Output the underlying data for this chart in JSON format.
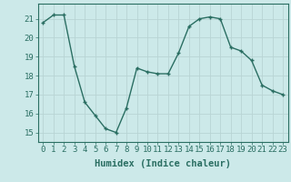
{
  "x": [
    0,
    1,
    2,
    3,
    4,
    5,
    6,
    7,
    8,
    9,
    10,
    11,
    12,
    13,
    14,
    15,
    16,
    17,
    18,
    19,
    20,
    21,
    22,
    23
  ],
  "y": [
    20.8,
    21.2,
    21.2,
    18.5,
    16.6,
    15.9,
    15.2,
    15.0,
    16.3,
    18.4,
    18.2,
    18.1,
    18.1,
    19.2,
    20.6,
    21.0,
    21.1,
    21.0,
    19.5,
    19.3,
    18.8,
    17.5,
    17.2,
    17.0
  ],
  "line_color": "#2a6e62",
  "marker": "+",
  "marker_size": 3.5,
  "marker_linewidth": 1.0,
  "bg_color": "#cce9e9",
  "grid_color": "#b8d4d4",
  "xlabel": "Humidex (Indice chaleur)",
  "ylim": [
    14.5,
    21.8
  ],
  "xlim": [
    -0.5,
    23.5
  ],
  "yticks": [
    15,
    16,
    17,
    18,
    19,
    20,
    21
  ],
  "xticks": [
    0,
    1,
    2,
    3,
    4,
    5,
    6,
    7,
    8,
    9,
    10,
    11,
    12,
    13,
    14,
    15,
    16,
    17,
    18,
    19,
    20,
    21,
    22,
    23
  ],
  "xtick_labels": [
    "0",
    "1",
    "2",
    "3",
    "4",
    "5",
    "6",
    "7",
    "8",
    "9",
    "10",
    "11",
    "12",
    "13",
    "14",
    "15",
    "16",
    "17",
    "18",
    "19",
    "20",
    "21",
    "22",
    "23"
  ],
  "tick_color": "#2a6e62",
  "axis_label_fontsize": 7.5,
  "tick_fontsize": 6.5,
  "linewidth": 1.0
}
